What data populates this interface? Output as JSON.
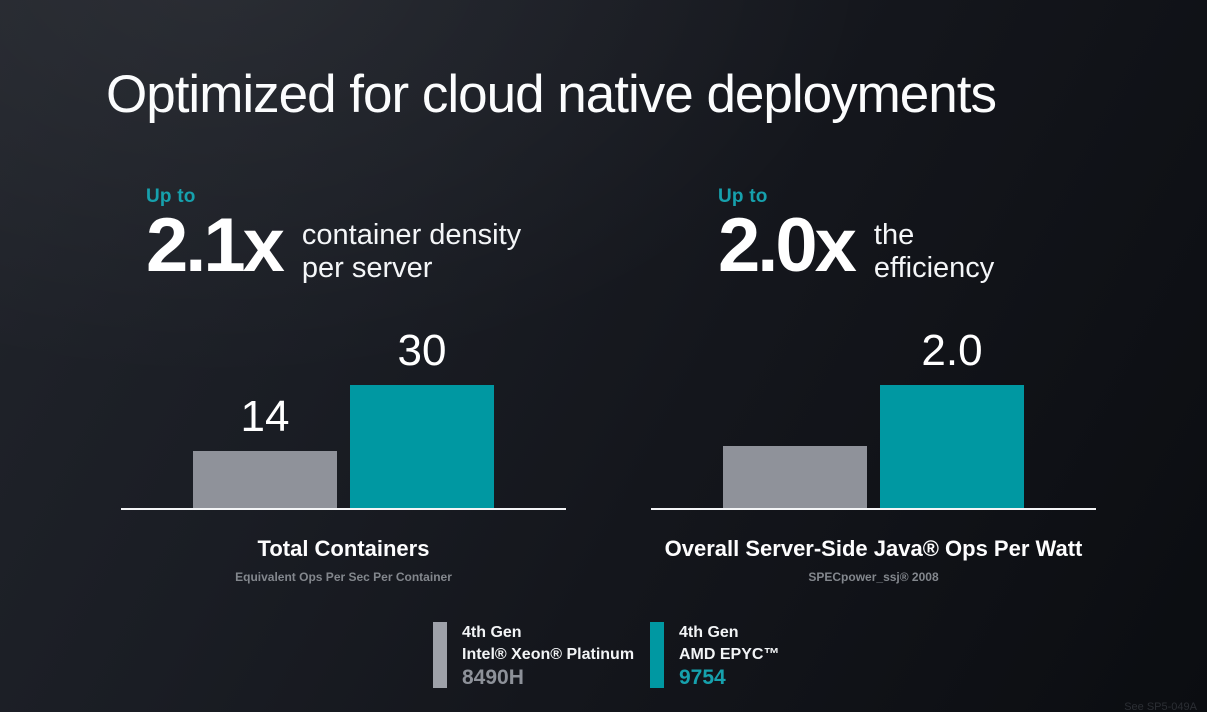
{
  "slide": {
    "title": "Optimized for cloud native deployments",
    "footnote": "See SP5-049A"
  },
  "stats": [
    {
      "prefix": "Up to",
      "value": "2.1x",
      "desc_line1": "container density",
      "desc_line2": "per server"
    },
    {
      "prefix": "Up to",
      "value": "2.0x",
      "desc_line1": "the",
      "desc_line2": "efficiency"
    }
  ],
  "chart_data": [
    {
      "type": "bar",
      "title": "Total Containers",
      "subtitle": "Equivalent Ops Per Sec Per Container",
      "categories": [
        "4th Gen Intel® Xeon® Platinum 8490H",
        "4th Gen AMD EPYC™ 9754"
      ],
      "values": [
        14,
        30
      ],
      "bar_labels": [
        "14",
        "30"
      ],
      "bar_colors": [
        "#8F929A",
        "#0098A2"
      ],
      "ylim": [
        0,
        30
      ],
      "grid": false,
      "legend_position": "bottom-center"
    },
    {
      "type": "bar",
      "title": "Overall Server-Side Java® Ops Per Watt",
      "subtitle": "SPECpower_ssj® 2008",
      "categories": [
        "4th Gen Intel® Xeon® Platinum 8490H",
        "4th Gen AMD EPYC™ 9754"
      ],
      "values": [
        1.0,
        2.0
      ],
      "bar_labels": [
        "",
        "2.0"
      ],
      "bar_colors": [
        "#8F929A",
        "#0098A2"
      ],
      "ylim": [
        0,
        2
      ],
      "grid": false,
      "legend_position": "bottom-center"
    }
  ],
  "legend": {
    "items": [
      {
        "swatch_color": "#9EA1A9",
        "line1": "4th Gen",
        "line2": "Intel® Xeon® Platinum",
        "line3": "8490H",
        "line3_color": "#8D9199"
      },
      {
        "swatch_color": "#0098A2",
        "line1": "4th Gen",
        "line2": "AMD EPYC™",
        "line3": "9754",
        "line3_color": "#16A1AD"
      }
    ]
  },
  "colors": {
    "background_top": "#21242b",
    "background_bottom": "#0b0d11",
    "accent_teal": "#0098A2",
    "accent_teal_text": "#16A1AD",
    "bar_gray": "#8F929A",
    "text_white": "#FFFFFF",
    "text_gray": "#83878D",
    "axis_line": "#F3F4F6"
  }
}
